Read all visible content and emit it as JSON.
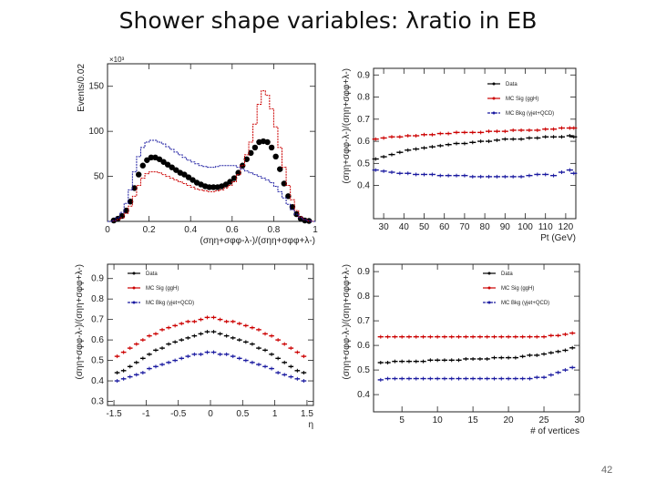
{
  "slide": {
    "title": "Shower shape variables:  λratio in EB",
    "page_number": "42"
  },
  "chart_data": [
    {
      "type": "histogram",
      "name": "ratio-distribution",
      "xlabel": "(σηη+σφφ-λ-)/(σηη+σφφ+λ-)",
      "ylabel": "Events/0.02",
      "exponent_label": "×10³",
      "xlim": [
        0,
        1
      ],
      "ylim": [
        0,
        175
      ],
      "xticks": [
        0,
        0.2,
        0.4,
        0.6,
        0.8,
        1
      ],
      "xtick_labels": [
        "0",
        "0.2",
        "0.4",
        "0.6",
        "0.8",
        "1"
      ],
      "yticks": [
        50,
        100,
        150
      ],
      "ytick_labels": [
        "50",
        "100",
        "150"
      ],
      "x": [
        0.01,
        0.03,
        0.05,
        0.07,
        0.09,
        0.11,
        0.13,
        0.15,
        0.17,
        0.19,
        0.21,
        0.23,
        0.25,
        0.27,
        0.29,
        0.31,
        0.33,
        0.35,
        0.37,
        0.39,
        0.41,
        0.43,
        0.45,
        0.47,
        0.49,
        0.51,
        0.53,
        0.55,
        0.57,
        0.59,
        0.61,
        0.63,
        0.65,
        0.67,
        0.69,
        0.71,
        0.73,
        0.75,
        0.77,
        0.79,
        0.81,
        0.83,
        0.85,
        0.87,
        0.89,
        0.91,
        0.93,
        0.95,
        0.97,
        0.99
      ],
      "series": [
        {
          "name": "Data",
          "color": "#000000",
          "style": "markers",
          "values": [
            0,
            1,
            3,
            6,
            12,
            22,
            37,
            52,
            62,
            68,
            71,
            71,
            69,
            66,
            63,
            60,
            57,
            54,
            52,
            49,
            46,
            43,
            41,
            39,
            38,
            38,
            38,
            39,
            41,
            44,
            48,
            54,
            62,
            69,
            76,
            82,
            88,
            89,
            88,
            82,
            72,
            58,
            42,
            28,
            16,
            8,
            3,
            1,
            0.5,
            0
          ]
        },
        {
          "name": "MC Sig (ggH)",
          "color": "#cc0000",
          "style": "step",
          "values": [
            0,
            0.5,
            2,
            4,
            9,
            17,
            28,
            40,
            48,
            53,
            55,
            55,
            54,
            52,
            50,
            48,
            46,
            44,
            42,
            40,
            38,
            36,
            35,
            34,
            33,
            33,
            34,
            35,
            37,
            40,
            44,
            52,
            62,
            74,
            88,
            108,
            130,
            145,
            140,
            125,
            105,
            82,
            60,
            40,
            24,
            12,
            5,
            2,
            0.5,
            0
          ]
        },
        {
          "name": "MC Bkg (γjet+QCD)",
          "color": "#1a1aa0",
          "style": "step",
          "values": [
            0,
            1,
            4,
            10,
            20,
            35,
            55,
            72,
            82,
            88,
            90,
            90,
            88,
            86,
            83,
            80,
            77,
            74,
            71,
            68,
            66,
            64,
            62,
            61,
            60,
            60,
            61,
            62,
            62,
            62,
            62,
            60,
            58,
            56,
            54,
            52,
            50,
            48,
            46,
            43,
            39,
            33,
            26,
            19,
            13,
            8,
            4,
            2,
            1,
            0
          ]
        }
      ]
    },
    {
      "type": "profile",
      "name": "ratio-vs-pt",
      "xlabel": "Pt (GeV)",
      "ylabel": "(σηη+σφφ-λ-)/(σηη+σφφ+λ-)",
      "xlim": [
        25,
        125
      ],
      "ylim": [
        0.25,
        0.93
      ],
      "xticks": [
        30,
        40,
        50,
        60,
        70,
        80,
        90,
        100,
        110,
        120
      ],
      "xtick_labels": [
        "30",
        "40",
        "50",
        "60",
        "70",
        "80",
        "90",
        "100",
        "110",
        "120"
      ],
      "yticks": [
        0.4,
        0.5,
        0.6,
        0.7,
        0.8,
        0.9
      ],
      "ytick_labels": [
        "0.4",
        "0.5",
        "0.6",
        "0.7",
        "0.8",
        "0.9"
      ],
      "x": [
        26,
        30,
        34,
        38,
        42,
        46,
        50,
        54,
        58,
        62,
        66,
        70,
        74,
        78,
        82,
        86,
        90,
        94,
        98,
        102,
        106,
        110,
        114,
        118,
        122,
        124
      ],
      "series": [
        {
          "name": "Data",
          "color": "#000000",
          "values": [
            0.52,
            0.53,
            0.54,
            0.55,
            0.56,
            0.565,
            0.57,
            0.575,
            0.58,
            0.585,
            0.59,
            0.59,
            0.595,
            0.6,
            0.6,
            0.605,
            0.61,
            0.61,
            0.61,
            0.615,
            0.615,
            0.62,
            0.62,
            0.62,
            0.625,
            0.62
          ]
        },
        {
          "name": "MC Sig (ggH)",
          "color": "#cc0000",
          "values": [
            0.61,
            0.615,
            0.62,
            0.62,
            0.625,
            0.625,
            0.63,
            0.63,
            0.635,
            0.635,
            0.64,
            0.64,
            0.64,
            0.64,
            0.645,
            0.645,
            0.645,
            0.65,
            0.65,
            0.65,
            0.65,
            0.655,
            0.655,
            0.66,
            0.66,
            0.66
          ]
        },
        {
          "name": "MC Bkg (γjet+QCD)",
          "color": "#1a1aa0",
          "values": [
            0.47,
            0.465,
            0.46,
            0.455,
            0.455,
            0.45,
            0.45,
            0.45,
            0.445,
            0.445,
            0.445,
            0.445,
            0.44,
            0.44,
            0.44,
            0.44,
            0.44,
            0.44,
            0.44,
            0.445,
            0.45,
            0.45,
            0.445,
            0.46,
            0.47,
            0.455
          ]
        }
      ]
    },
    {
      "type": "profile",
      "name": "ratio-vs-eta",
      "xlabel": "η",
      "ylabel": "(σηη+σφφ-λ-)/(σηη+σφφ+λ-)",
      "xlim": [
        -1.6,
        1.6
      ],
      "ylim": [
        0.28,
        0.97
      ],
      "xticks": [
        -1.5,
        -1,
        -0.5,
        0,
        0.5,
        1,
        1.5
      ],
      "xtick_labels": [
        "-1.5",
        "-1",
        "-0.5",
        "0",
        "0.5",
        "1",
        "1.5"
      ],
      "yticks": [
        0.3,
        0.4,
        0.5,
        0.6,
        0.7,
        0.8,
        0.9
      ],
      "ytick_labels": [
        "0.3",
        "0.4",
        "0.5",
        "0.6",
        "0.7",
        "0.8",
        "0.9"
      ],
      "x": [
        -1.45,
        -1.35,
        -1.25,
        -1.15,
        -1.05,
        -0.95,
        -0.85,
        -0.75,
        -0.65,
        -0.55,
        -0.45,
        -0.35,
        -0.25,
        -0.15,
        -0.05,
        0.05,
        0.15,
        0.25,
        0.35,
        0.45,
        0.55,
        0.65,
        0.75,
        0.85,
        0.95,
        1.05,
        1.15,
        1.25,
        1.35,
        1.45
      ],
      "series": [
        {
          "name": "Data",
          "color": "#000000",
          "values": [
            0.44,
            0.45,
            0.47,
            0.49,
            0.51,
            0.53,
            0.55,
            0.56,
            0.58,
            0.59,
            0.6,
            0.61,
            0.62,
            0.63,
            0.64,
            0.64,
            0.63,
            0.62,
            0.61,
            0.6,
            0.59,
            0.58,
            0.56,
            0.55,
            0.53,
            0.51,
            0.49,
            0.47,
            0.45,
            0.44
          ]
        },
        {
          "name": "MC Sig (ggH)",
          "color": "#cc0000",
          "values": [
            0.52,
            0.54,
            0.56,
            0.58,
            0.6,
            0.62,
            0.63,
            0.65,
            0.66,
            0.67,
            0.68,
            0.69,
            0.69,
            0.7,
            0.71,
            0.71,
            0.7,
            0.69,
            0.69,
            0.68,
            0.67,
            0.66,
            0.65,
            0.63,
            0.62,
            0.6,
            0.58,
            0.56,
            0.54,
            0.52
          ]
        },
        {
          "name": "MC Bkg (γjet+QCD)",
          "color": "#1a1aa0",
          "values": [
            0.4,
            0.41,
            0.42,
            0.43,
            0.44,
            0.46,
            0.47,
            0.48,
            0.49,
            0.5,
            0.51,
            0.52,
            0.53,
            0.53,
            0.54,
            0.54,
            0.53,
            0.53,
            0.52,
            0.51,
            0.5,
            0.49,
            0.48,
            0.47,
            0.46,
            0.44,
            0.43,
            0.42,
            0.41,
            0.4
          ]
        }
      ]
    },
    {
      "type": "profile",
      "name": "ratio-vs-vertices",
      "xlabel": "# of vertices",
      "ylabel": "(σηη+σφφ-λ-)/(σηη+σφφ+λ-)",
      "xlim": [
        1,
        30
      ],
      "ylim": [
        0.33,
        0.93
      ],
      "xticks": [
        5,
        10,
        15,
        20,
        25,
        30
      ],
      "xtick_labels": [
        "5",
        "10",
        "15",
        "20",
        "25",
        "30"
      ],
      "yticks": [
        0.4,
        0.5,
        0.6,
        0.7,
        0.8,
        0.9
      ],
      "ytick_labels": [
        "0.4",
        "0.5",
        "0.6",
        "0.7",
        "0.8",
        "0.9"
      ],
      "x": [
        2,
        3,
        4,
        5,
        6,
        7,
        8,
        9,
        10,
        11,
        12,
        13,
        14,
        15,
        16,
        17,
        18,
        19,
        20,
        21,
        22,
        23,
        24,
        25,
        26,
        27,
        28,
        29
      ],
      "series": [
        {
          "name": "Data",
          "color": "#000000",
          "values": [
            0.53,
            0.53,
            0.535,
            0.535,
            0.535,
            0.535,
            0.535,
            0.54,
            0.54,
            0.54,
            0.54,
            0.54,
            0.545,
            0.545,
            0.545,
            0.545,
            0.55,
            0.55,
            0.55,
            0.55,
            0.555,
            0.56,
            0.56,
            0.565,
            0.57,
            0.575,
            0.58,
            0.59
          ]
        },
        {
          "name": "MC Sig (ggH)",
          "color": "#cc0000",
          "values": [
            0.635,
            0.635,
            0.635,
            0.635,
            0.635,
            0.635,
            0.635,
            0.635,
            0.635,
            0.635,
            0.635,
            0.635,
            0.635,
            0.635,
            0.635,
            0.635,
            0.635,
            0.635,
            0.635,
            0.635,
            0.635,
            0.635,
            0.635,
            0.635,
            0.64,
            0.64,
            0.645,
            0.65
          ]
        },
        {
          "name": "MC Bkg (γjet+QCD)",
          "color": "#1a1aa0",
          "values": [
            0.46,
            0.465,
            0.465,
            0.465,
            0.465,
            0.465,
            0.465,
            0.465,
            0.465,
            0.465,
            0.465,
            0.465,
            0.465,
            0.465,
            0.465,
            0.465,
            0.465,
            0.465,
            0.465,
            0.465,
            0.465,
            0.465,
            0.47,
            0.47,
            0.48,
            0.49,
            0.5,
            0.51
          ]
        }
      ]
    }
  ]
}
